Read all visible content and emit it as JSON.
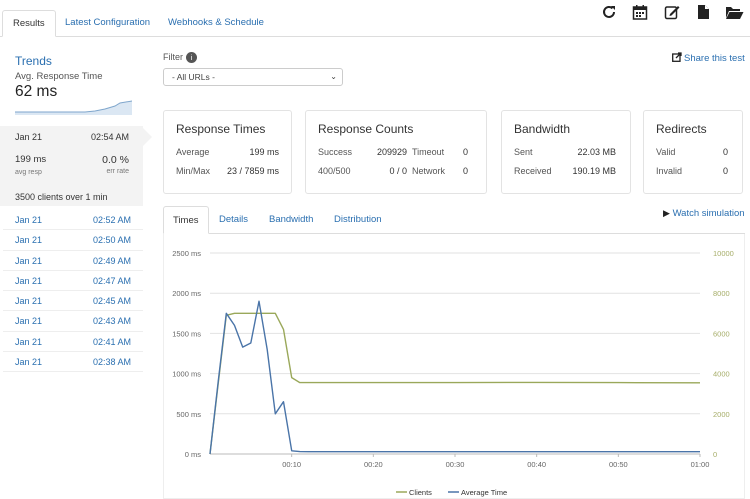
{
  "tabs": [
    "Results",
    "Latest Configuration",
    "Webhooks & Schedule"
  ],
  "toolbar_icons": [
    "refresh-icon",
    "calendar-icon",
    "edit-icon",
    "file-icon",
    "folder-open-icon"
  ],
  "trends": {
    "title": "Trends",
    "subtitle": "Avg. Response Time",
    "value": "62 ms"
  },
  "current_run": {
    "date": "Jan 21",
    "time": "02:54 AM",
    "avg_resp": "199 ms",
    "avg_resp_label": "avg resp",
    "err_rate": "0.0 %",
    "err_rate_label": "err rate",
    "clients": "3500 clients over 1 min"
  },
  "history": [
    {
      "date": "Jan 21",
      "time": "02:52 AM"
    },
    {
      "date": "Jan 21",
      "time": "02:50 AM"
    },
    {
      "date": "Jan 21",
      "time": "02:49 AM"
    },
    {
      "date": "Jan 21",
      "time": "02:47 AM"
    },
    {
      "date": "Jan 21",
      "time": "02:45 AM"
    },
    {
      "date": "Jan 21",
      "time": "02:43 AM"
    },
    {
      "date": "Jan 21",
      "time": "02:41 AM"
    },
    {
      "date": "Jan 21",
      "time": "02:38 AM"
    }
  ],
  "filter": {
    "label": "Filter",
    "info": "i",
    "selected": "- All URLs -"
  },
  "share_label": "Share this test",
  "cards": {
    "response_times": {
      "title": "Response Times",
      "average_label": "Average",
      "average": "199 ms",
      "minmax_label": "Min/Max",
      "minmax": "23 / 7859 ms"
    },
    "response_counts": {
      "title": "Response Counts",
      "success_label": "Success",
      "success": "209929",
      "timeout_label": "Timeout",
      "timeout": "0",
      "s400_label": "400/500",
      "s400": "0 / 0",
      "network_label": "Network",
      "network": "0"
    },
    "bandwidth": {
      "title": "Bandwidth",
      "sent_label": "Sent",
      "sent": "22.03 MB",
      "received_label": "Received",
      "received": "190.19 MB"
    },
    "redirects": {
      "title": "Redirects",
      "valid_label": "Valid",
      "valid": "0",
      "invalid_label": "Invalid",
      "invalid": "0"
    }
  },
  "content_tabs": [
    "Times",
    "Details",
    "Bandwidth",
    "Distribution"
  ],
  "watch_label": "Watch simulation",
  "colors": {
    "clients": "#9aa85a",
    "average_time": "#4a74a8",
    "link": "#2a6fb0"
  },
  "chart_data": {
    "type": "line",
    "x": [
      "00:00",
      "00:01",
      "00:02",
      "00:03",
      "00:04",
      "00:05",
      "00:06",
      "00:07",
      "00:08",
      "00:09",
      "00:10",
      "00:11",
      "00:12",
      "00:20",
      "00:30",
      "00:40",
      "00:50",
      "01:00"
    ],
    "x_tick_labels": [
      "00:10",
      "00:20",
      "00:30",
      "00:40",
      "00:50",
      "01:00"
    ],
    "y_left_ticks": [
      "0 ms",
      "500 ms",
      "1000 ms",
      "1500 ms",
      "2000 ms",
      "2500 ms"
    ],
    "y_right_ticks": [
      "0",
      "2000",
      "4000",
      "6000",
      "8000",
      "10000"
    ],
    "ylim_left": [
      0,
      2500
    ],
    "ylim_right": [
      0,
      10000
    ],
    "series": [
      {
        "name": "Clients",
        "axis": "right",
        "values": [
          0,
          3500,
          6900,
          7000,
          7000,
          7000,
          7000,
          7000,
          7000,
          6200,
          3800,
          3550,
          3550,
          3550,
          3550,
          3560,
          3550,
          3540
        ]
      },
      {
        "name": "Average Time",
        "axis": "left",
        "values": [
          0,
          900,
          1750,
          1600,
          1330,
          1380,
          1900,
          1300,
          500,
          650,
          40,
          30,
          28,
          28,
          28,
          28,
          28,
          28
        ]
      }
    ],
    "legend": "bottom",
    "grid": true
  }
}
